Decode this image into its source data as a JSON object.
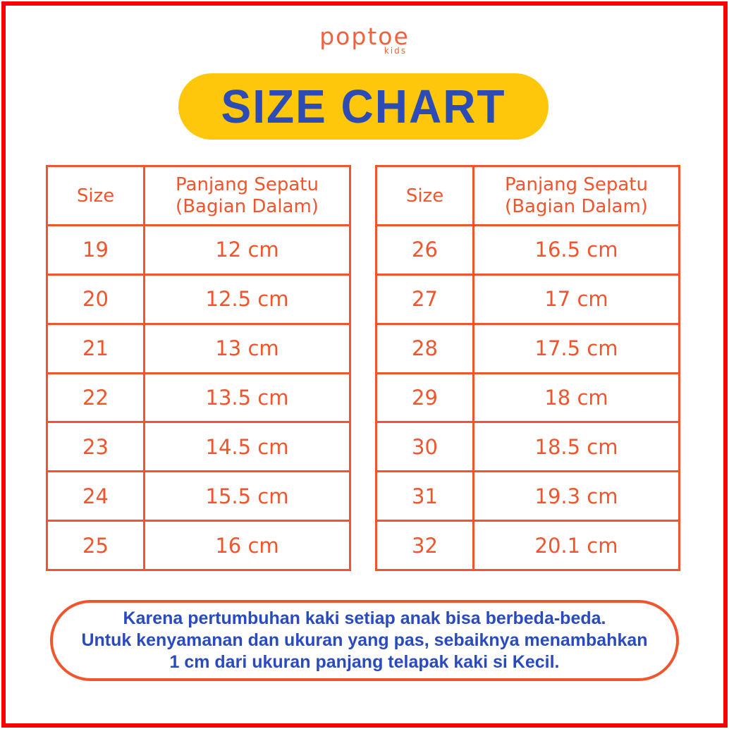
{
  "brand": {
    "name": "poptoe",
    "tagline": "kids"
  },
  "title": "SIZE CHART",
  "tables": [
    {
      "header": {
        "size": "Size",
        "length_line1": "Panjang Sepatu",
        "length_line2": "(Bagian Dalam)"
      },
      "rows": [
        {
          "size": "19",
          "length": "12 cm"
        },
        {
          "size": "20",
          "length": "12.5 cm"
        },
        {
          "size": "21",
          "length": "13 cm"
        },
        {
          "size": "22",
          "length": "13.5 cm"
        },
        {
          "size": "23",
          "length": "14.5 cm"
        },
        {
          "size": "24",
          "length": "15.5 cm"
        },
        {
          "size": "25",
          "length": "16 cm"
        }
      ]
    },
    {
      "header": {
        "size": "Size",
        "length_line1": "Panjang Sepatu",
        "length_line2": "(Bagian Dalam)"
      },
      "rows": [
        {
          "size": "26",
          "length": "16.5 cm"
        },
        {
          "size": "27",
          "length": "17 cm"
        },
        {
          "size": "28",
          "length": "17.5 cm"
        },
        {
          "size": "29",
          "length": "18 cm"
        },
        {
          "size": "30",
          "length": "18.5 cm"
        },
        {
          "size": "31",
          "length": "19.3 cm"
        },
        {
          "size": "32",
          "length": "20.1 cm"
        }
      ]
    }
  ],
  "note": {
    "line1": "Karena pertumbuhan kaki setiap anak bisa berbeda-beda.",
    "line2": "Untuk kenyamanan dan ukuran yang pas, sebaiknya menambahkan",
    "line3": "1 cm dari ukuran panjang telapak kaki si Kecil."
  },
  "colors": {
    "frame_red": "#FE0000",
    "accent_orange": "#F1552D",
    "logo_orange": "#F2613C",
    "pill_yellow": "#FFC70B",
    "title_blue": "#2C4BB4",
    "note_blue": "#2A4AC0"
  }
}
